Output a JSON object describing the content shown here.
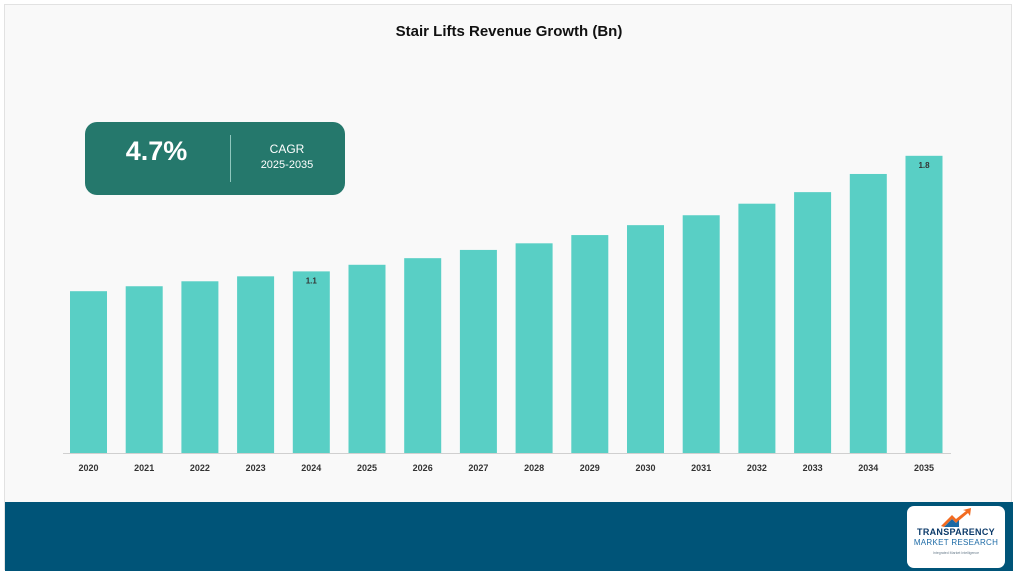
{
  "chart_data": {
    "type": "bar",
    "title": "Stair Lifts Revenue Growth (Bn)",
    "xlabel": "",
    "ylabel": "",
    "categories": [
      "2020",
      "2021",
      "2022",
      "2023",
      "2024",
      "2025",
      "2026",
      "2027",
      "2028",
      "2029",
      "2030",
      "2031",
      "2032",
      "2033",
      "2034",
      "2035"
    ],
    "values": [
      0.98,
      1.01,
      1.04,
      1.07,
      1.1,
      1.14,
      1.18,
      1.23,
      1.27,
      1.32,
      1.38,
      1.44,
      1.51,
      1.58,
      1.69,
      1.8
    ],
    "data_labels": {
      "4": "1.1",
      "15": "1.8"
    },
    "ylim": [
      0,
      2.35
    ],
    "bar_color": "#59cfc5",
    "grid": false,
    "legend": "none"
  },
  "cagr": {
    "value": "4.7%",
    "label": "CAGR",
    "period": "2025-2035",
    "box_color": "#25786c"
  },
  "footer": {
    "color": "#005478",
    "logo": {
      "line1": "TRANSPARENCY",
      "line2": "MARKET RESEARCH",
      "line3": "Integrated Market Intelligence"
    }
  }
}
